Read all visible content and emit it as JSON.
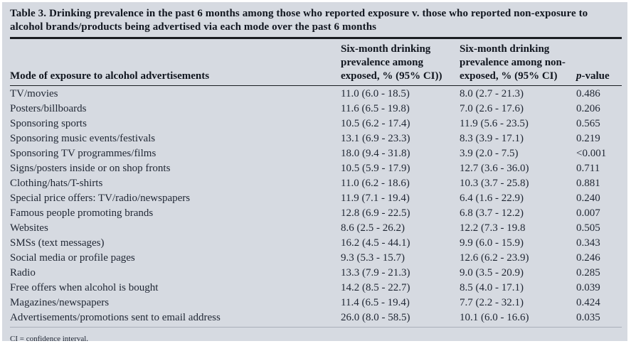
{
  "title": "Table 3. Drinking prevalence in the past 6 months among those who reported exposure v. those who reported non-exposure to alcohol brands/products being advertised via each mode over the past 6 months",
  "table": {
    "columns": {
      "mode": "Mode of exposure to alcohol advertisements",
      "exposed": "Six-month drinking\nprevalence among\nexposed, % (95% CI))",
      "non_exposed": "Six-month drinking\nprevalence among non-\nexposed, % (95% CI)",
      "p": "p-value"
    },
    "rows": [
      {
        "mode": "TV/movies",
        "exposed": "11.0 (6.0 - 18.5)",
        "non_exposed": "8.0 (2.7 - 21.3)",
        "p": "0.486"
      },
      {
        "mode": "Posters/billboards",
        "exposed": "11.6 (6.5 - 19.8)",
        "non_exposed": "7.0 (2.6 - 17.6)",
        "p": "0.206"
      },
      {
        "mode": "Sponsoring sports",
        "exposed": "10.5 (6.2 - 17.4)",
        "non_exposed": "11.9 (5.6 - 23.5)",
        "p": "0.565"
      },
      {
        "mode": "Sponsoring music events/festivals",
        "exposed": "13.1 (6.9 - 23.3)",
        "non_exposed": "8.3 (3.9 - 17.1)",
        "p": "0.219"
      },
      {
        "mode": "Sponsoring TV programmes/films",
        "exposed": "18.0 (9.4 - 31.8)",
        "non_exposed": "3.9 (2.0 - 7.5)",
        "p": "<0.001"
      },
      {
        "mode": "Signs/posters inside or on shop fronts",
        "exposed": "10.5 (5.9 - 17.9)",
        "non_exposed": "12.7 (3.6 - 36.0)",
        "p": "0.711"
      },
      {
        "mode": "Clothing/hats/T-shirts",
        "exposed": "11.0 (6.2 - 18.6)",
        "non_exposed": "10.3 (3.7 - 25.8)",
        "p": "0.881"
      },
      {
        "mode": "Special price offers: TV/radio/newspapers",
        "exposed": "11.9 (7.1 - 19.4)",
        "non_exposed": "6.4 (1.6 - 22.9)",
        "p": "0.240"
      },
      {
        "mode": "Famous people promoting brands",
        "exposed": "12.8 (6.9 - 22.5)",
        "non_exposed": "6.8 (3.7 - 12.2)",
        "p": "0.007"
      },
      {
        "mode": "Websites",
        "exposed": "8.6 (2.5 - 26.2)",
        "non_exposed": "12.2 (7.3 - 19.8",
        "p": "0.505"
      },
      {
        "mode": "SMSs (text messages)",
        "exposed": "16.2 (4.5 - 44.1)",
        "non_exposed": "9.9 (6.0 - 15.9)",
        "p": "0.343"
      },
      {
        "mode": "Social media or profile pages",
        "exposed": "9.3 (5.3 - 15.7)",
        "non_exposed": "12.6 (6.2 - 23.9)",
        "p": "0.246"
      },
      {
        "mode": "Radio",
        "exposed": "13.3 (7.9 - 21.3)",
        "non_exposed": "9.0 (3.5 - 20.9)",
        "p": "0.285"
      },
      {
        "mode": "Free offers when alcohol is bought",
        "exposed": "14.2 (8.5 - 22.7)",
        "non_exposed": "8.5 (4.0 - 17.1)",
        "p": "0.039"
      },
      {
        "mode": "Magazines/newspapers",
        "exposed": "11.4 (6.5 - 19.4)",
        "non_exposed": "7.7 (2.2 - 32.1)",
        "p": "0.424"
      },
      {
        "mode": "Advertisements/promotions sent to email address",
        "exposed": "26.0 (8.0 - 58.5)",
        "non_exposed": "10.1 (6.0 - 16.6)",
        "p": "0.035"
      }
    ]
  },
  "footnote": "CI = confidence interval.",
  "colors": {
    "panel_bg": "#d6dae1",
    "text": "#1f2633",
    "title": "#11161f",
    "rule": "#1a1d22",
    "light_rule": "#a9afb9"
  }
}
